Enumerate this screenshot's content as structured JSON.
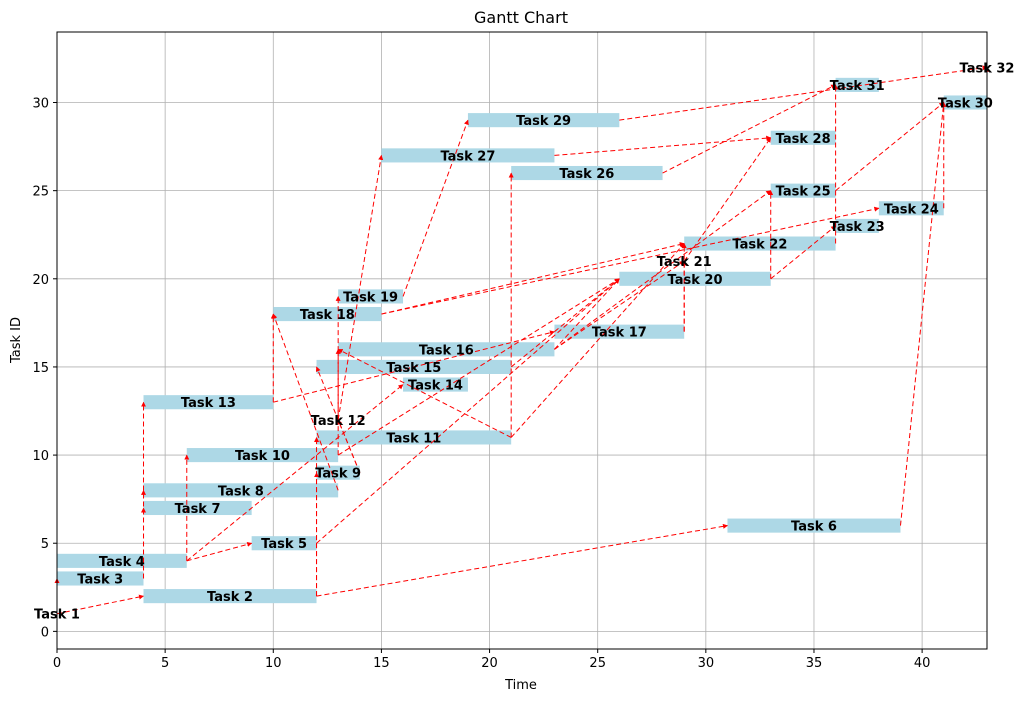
{
  "chart_data": {
    "type": "gantt",
    "title": "Gantt Chart",
    "xlabel": "Time",
    "ylabel": "Task ID",
    "xlim": [
      0,
      43
    ],
    "ylim": [
      -1,
      34
    ],
    "xticks": [
      0,
      5,
      10,
      15,
      20,
      25,
      30,
      35,
      40
    ],
    "yticks": [
      0,
      5,
      10,
      15,
      20,
      25,
      30
    ],
    "grid": true,
    "bar_color": "#add8e6",
    "arrow_color": "#ff0000",
    "tasks": [
      {
        "id": 1,
        "label": "Task 1",
        "start": 0,
        "end": 0
      },
      {
        "id": 2,
        "label": "Task 2",
        "start": 4,
        "end": 12
      },
      {
        "id": 3,
        "label": "Task 3",
        "start": 0,
        "end": 4
      },
      {
        "id": 4,
        "label": "Task 4",
        "start": 0,
        "end": 6
      },
      {
        "id": 5,
        "label": "Task 5",
        "start": 9,
        "end": 12
      },
      {
        "id": 6,
        "label": "Task 6",
        "start": 31,
        "end": 39
      },
      {
        "id": 7,
        "label": "Task 7",
        "start": 4,
        "end": 9
      },
      {
        "id": 8,
        "label": "Task 8",
        "start": 4,
        "end": 13
      },
      {
        "id": 9,
        "label": "Task 9",
        "start": 12,
        "end": 14
      },
      {
        "id": 10,
        "label": "Task 10",
        "start": 6,
        "end": 13
      },
      {
        "id": 11,
        "label": "Task 11",
        "start": 12,
        "end": 21
      },
      {
        "id": 12,
        "label": "Task 12",
        "start": 13,
        "end": 13
      },
      {
        "id": 13,
        "label": "Task 13",
        "start": 4,
        "end": 10
      },
      {
        "id": 14,
        "label": "Task 14",
        "start": 16,
        "end": 19
      },
      {
        "id": 15,
        "label": "Task 15",
        "start": 12,
        "end": 21
      },
      {
        "id": 16,
        "label": "Task 16",
        "start": 13,
        "end": 23
      },
      {
        "id": 17,
        "label": "Task 17",
        "start": 23,
        "end": 29
      },
      {
        "id": 18,
        "label": "Task 18",
        "start": 10,
        "end": 15
      },
      {
        "id": 19,
        "label": "Task 19",
        "start": 13,
        "end": 16
      },
      {
        "id": 20,
        "label": "Task 20",
        "start": 26,
        "end": 33
      },
      {
        "id": 21,
        "label": "Task 21",
        "start": 29,
        "end": 29
      },
      {
        "id": 22,
        "label": "Task 22",
        "start": 29,
        "end": 36
      },
      {
        "id": 23,
        "label": "Task 23",
        "start": 36,
        "end": 38
      },
      {
        "id": 24,
        "label": "Task 24",
        "start": 38,
        "end": 41
      },
      {
        "id": 25,
        "label": "Task 25",
        "start": 33,
        "end": 36
      },
      {
        "id": 26,
        "label": "Task 26",
        "start": 21,
        "end": 28
      },
      {
        "id": 27,
        "label": "Task 27",
        "start": 15,
        "end": 23
      },
      {
        "id": 28,
        "label": "Task 28",
        "start": 33,
        "end": 36
      },
      {
        "id": 29,
        "label": "Task 29",
        "start": 19,
        "end": 26
      },
      {
        "id": 30,
        "label": "Task 30",
        "start": 41,
        "end": 43
      },
      {
        "id": 31,
        "label": "Task 31",
        "start": 36,
        "end": 38
      },
      {
        "id": 32,
        "label": "Task 32",
        "start": 43,
        "end": 43
      }
    ],
    "dependencies": [
      [
        1,
        2
      ],
      [
        1,
        3
      ],
      [
        2,
        6
      ],
      [
        2,
        9
      ],
      [
        2,
        11
      ],
      [
        3,
        7
      ],
      [
        3,
        8
      ],
      [
        3,
        13
      ],
      [
        4,
        5
      ],
      [
        4,
        10
      ],
      [
        4,
        14
      ],
      [
        5,
        20
      ],
      [
        6,
        30
      ],
      [
        8,
        18
      ],
      [
        9,
        12
      ],
      [
        9,
        15
      ],
      [
        10,
        19
      ],
      [
        10,
        20
      ],
      [
        11,
        16
      ],
      [
        11,
        22
      ],
      [
        11,
        26
      ],
      [
        12,
        16
      ],
      [
        12,
        27
      ],
      [
        13,
        17
      ],
      [
        13,
        18
      ],
      [
        15,
        20
      ],
      [
        16,
        20
      ],
      [
        16,
        25
      ],
      [
        16,
        21
      ],
      [
        17,
        21
      ],
      [
        17,
        22
      ],
      [
        18,
        22
      ],
      [
        18,
        24
      ],
      [
        19,
        29
      ],
      [
        20,
        23
      ],
      [
        20,
        25
      ],
      [
        21,
        28
      ],
      [
        22,
        31
      ],
      [
        24,
        30
      ],
      [
        25,
        30
      ],
      [
        26,
        31
      ],
      [
        27,
        28
      ],
      [
        29,
        32
      ],
      [
        30,
        32
      ]
    ]
  }
}
